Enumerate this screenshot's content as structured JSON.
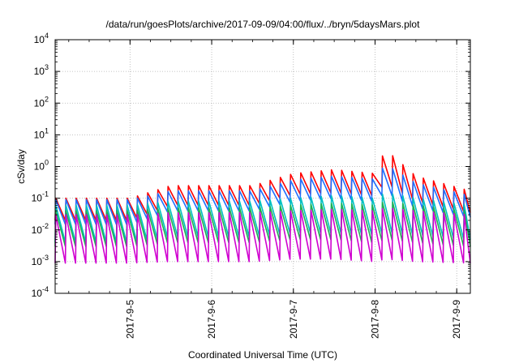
{
  "chart_data": {
    "type": "line",
    "title": "/data/run/goesPlots/archive/2017-09-09/04:00/flux/../bryn/5daysMars.plot",
    "xlabel": "Coordinated Universal Time (UTC)",
    "ylabel": "cSv/day",
    "x_range": [
      "2017-09-04 02:00",
      "2017-09-09 04:00"
    ],
    "x_ticks": [
      "2017-9-5",
      "2017-9-6",
      "2017-9-7",
      "2017-9-8",
      "2017-9-9"
    ],
    "y_scale": "log",
    "ylim": [
      0.0001,
      10000
    ],
    "y_ticks": [
      {
        "base": "10",
        "exp": "-4"
      },
      {
        "base": "10",
        "exp": "-3"
      },
      {
        "base": "10",
        "exp": "-2"
      },
      {
        "base": "10",
        "exp": "-1"
      },
      {
        "base": "10",
        "exp": "0"
      },
      {
        "base": "10",
        "exp": "1"
      },
      {
        "base": "10",
        "exp": "2"
      },
      {
        "base": "10",
        "exp": "3"
      },
      {
        "base": "10",
        "exp": "4"
      }
    ],
    "grid": true,
    "sawtooth_period_hours": 3,
    "series": [
      {
        "color": "#ff0000",
        "envelope": {
          "x": [
            "2017-09-04 02:00",
            "2017-09-05 00:00",
            "2017-09-05 12:00",
            "2017-09-06 12:00",
            "2017-09-07 00:00",
            "2017-09-07 12:00",
            "2017-09-08 00:00",
            "2017-09-08 03:00",
            "2017-09-08 12:00",
            "2017-09-09 04:00"
          ],
          "peak": [
            0.1,
            0.1,
            0.25,
            0.25,
            0.6,
            0.8,
            0.6,
            3.5,
            0.5,
            0.17
          ],
          "trough": [
            0.02,
            0.02,
            0.06,
            0.06,
            0.13,
            0.15,
            0.12,
            0.3,
            0.08,
            0.035
          ]
        }
      },
      {
        "color": "#1f6fff",
        "envelope": {
          "x": [
            "2017-09-04 02:00",
            "2017-09-05 00:00",
            "2017-09-05 12:00",
            "2017-09-06 12:00",
            "2017-09-07 00:00",
            "2017-09-07 12:00",
            "2017-09-08 00:00",
            "2017-09-08 03:00",
            "2017-09-08 12:00",
            "2017-09-09 04:00"
          ],
          "peak": [
            0.09,
            0.09,
            0.17,
            0.17,
            0.38,
            0.5,
            0.4,
            1.2,
            0.3,
            0.12
          ],
          "trough": [
            0.015,
            0.015,
            0.04,
            0.04,
            0.08,
            0.1,
            0.08,
            0.15,
            0.05,
            0.025
          ]
        }
      },
      {
        "color": "#00c0c0",
        "envelope": {
          "x": [
            "2017-09-04 02:00",
            "2017-09-05 00:00",
            "2017-09-05 12:00",
            "2017-09-06 12:00",
            "2017-09-07 00:00",
            "2017-09-07 12:00",
            "2017-09-08 00:00",
            "2017-09-08 03:00",
            "2017-09-08 12:00",
            "2017-09-09 04:00"
          ],
          "peak": [
            0.06,
            0.06,
            0.08,
            0.08,
            0.1,
            0.12,
            0.1,
            0.15,
            0.1,
            0.06
          ],
          "trough": [
            0.004,
            0.004,
            0.006,
            0.006,
            0.008,
            0.008,
            0.007,
            0.008,
            0.007,
            0.005
          ]
        }
      },
      {
        "color": "#20b050",
        "envelope": {
          "x": [
            "2017-09-04 02:00",
            "2017-09-05 00:00",
            "2017-09-05 12:00",
            "2017-09-06 12:00",
            "2017-09-07 00:00",
            "2017-09-07 12:00",
            "2017-09-08 00:00",
            "2017-09-08 03:00",
            "2017-09-08 12:00",
            "2017-09-09 04:00"
          ],
          "peak": [
            0.04,
            0.04,
            0.05,
            0.05,
            0.06,
            0.07,
            0.06,
            0.08,
            0.06,
            0.04
          ],
          "trough": [
            0.003,
            0.003,
            0.004,
            0.004,
            0.005,
            0.005,
            0.004,
            0.005,
            0.004,
            0.003
          ]
        }
      },
      {
        "color": "#d000d0",
        "envelope": {
          "x": [
            "2017-09-04 02:00",
            "2017-09-05 00:00",
            "2017-09-05 12:00",
            "2017-09-06 12:00",
            "2017-09-07 00:00",
            "2017-09-07 12:00",
            "2017-09-08 00:00",
            "2017-09-08 03:00",
            "2017-09-08 12:00",
            "2017-09-09 04:00"
          ],
          "peak": [
            0.03,
            0.03,
            0.035,
            0.035,
            0.04,
            0.045,
            0.04,
            0.05,
            0.04,
            0.03
          ],
          "trough": [
            0.0009,
            0.0009,
            0.001,
            0.001,
            0.0012,
            0.0012,
            0.001,
            0.0012,
            0.001,
            0.0009
          ]
        }
      }
    ]
  }
}
